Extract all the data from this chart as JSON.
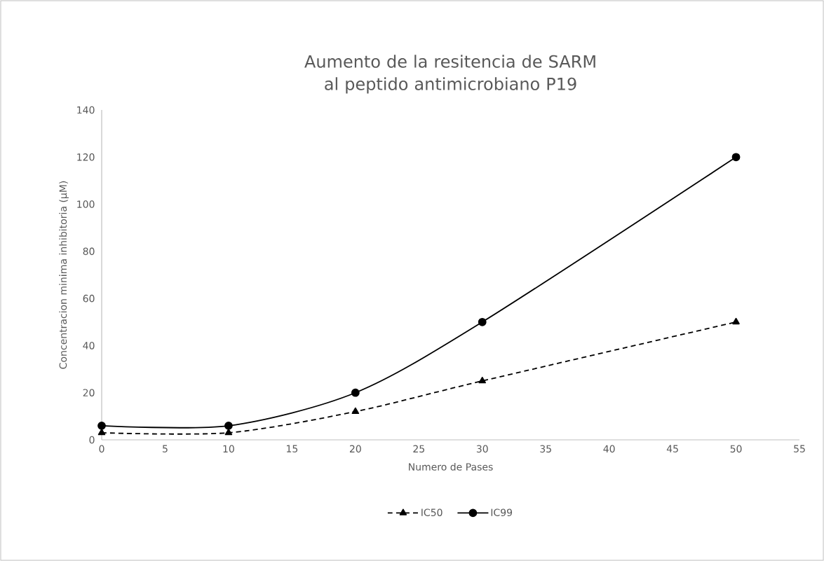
{
  "chart_data": {
    "type": "line",
    "title": "Aumento de la resitencia de SARM al peptido antimicrobiano P19",
    "xlabel": "Numero de Pases",
    "ylabel": "Concentracion minima inhibitoria  (µM)",
    "x": [
      0,
      10,
      20,
      30,
      50
    ],
    "series": [
      {
        "name": "IC50",
        "color": "#000000",
        "values": [
          3,
          3,
          12,
          25,
          50
        ],
        "marker": "triangle",
        "line_style": "dashed"
      },
      {
        "name": "IC99",
        "color": "#000000",
        "values": [
          6,
          6,
          20,
          50,
          120
        ],
        "marker": "circle",
        "line_style": "solid"
      }
    ],
    "xlim": [
      0,
      55
    ],
    "xticks": [
      0,
      5,
      10,
      15,
      20,
      25,
      30,
      35,
      40,
      45,
      50,
      55
    ],
    "ylim": [
      0,
      140
    ],
    "yticks": [
      0,
      20,
      40,
      60,
      80,
      100,
      120,
      140
    ],
    "grid": false,
    "legend": "bottom"
  }
}
